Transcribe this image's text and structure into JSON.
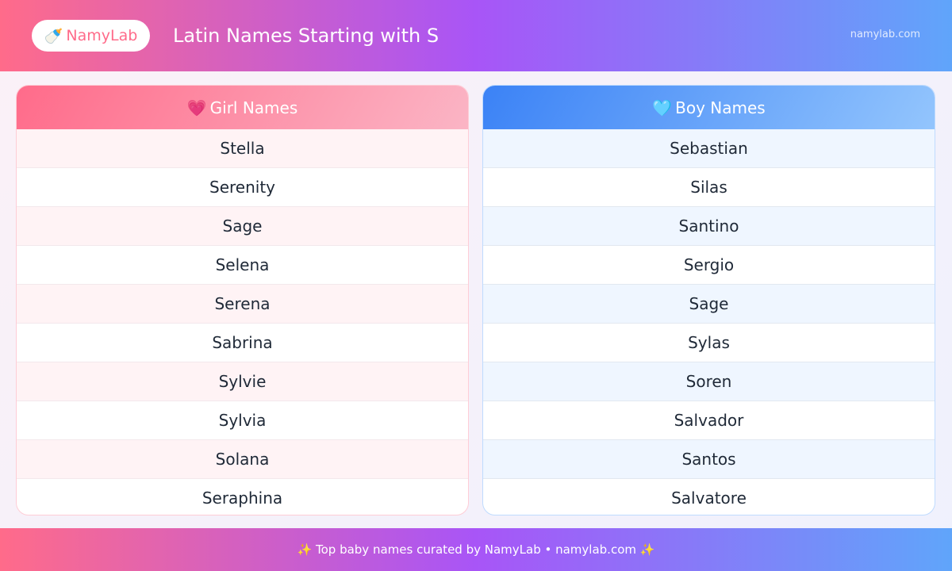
{
  "header": {
    "logo_icon": "baby-bottle-icon",
    "logo_emoji": "🍼",
    "logo": "NamyLab",
    "title": "Latin Names Starting with S",
    "site": "namylab.com"
  },
  "girls": {
    "icon": "💗",
    "title": "Girl Names",
    "names": [
      "Stella",
      "Serenity",
      "Sage",
      "Selena",
      "Serena",
      "Sabrina",
      "Sylvie",
      "Sylvia",
      "Solana",
      "Seraphina"
    ]
  },
  "boys": {
    "icon": "🩵",
    "title": "Boy Names",
    "names": [
      "Sebastian",
      "Silas",
      "Santino",
      "Sergio",
      "Sage",
      "Sylas",
      "Soren",
      "Salvador",
      "Santos",
      "Salvatore"
    ]
  },
  "footer": {
    "text": "✨ Top baby names curated by NamyLab • namylab.com ✨"
  },
  "colors": {
    "pink": "#ff6b8a",
    "purple": "#a855f7",
    "blue": "#60a5fa"
  }
}
